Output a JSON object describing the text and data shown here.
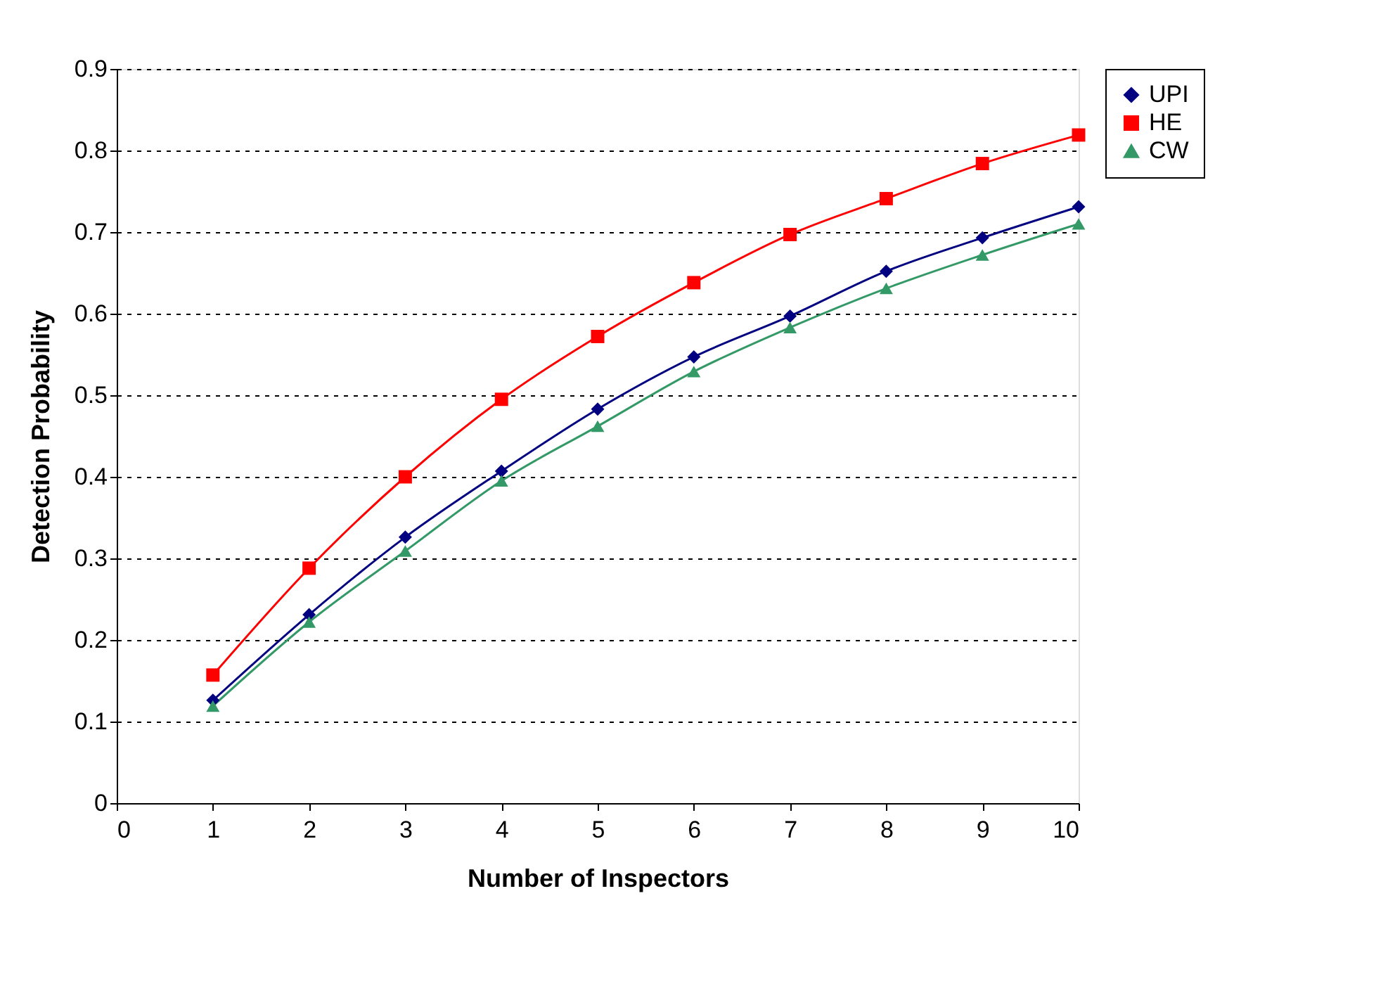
{
  "chart_data": {
    "type": "line",
    "xlabel": "Number of Inspectors",
    "ylabel": "Detection Probability",
    "x": [
      1,
      2,
      3,
      4,
      5,
      6,
      7,
      8,
      9,
      10
    ],
    "series": [
      {
        "name": "UPI",
        "color": "#000080",
        "marker": "diamond",
        "values": [
          0.126,
          0.231,
          0.326,
          0.407,
          0.483,
          0.547,
          0.597,
          0.652,
          0.693,
          0.731
        ]
      },
      {
        "name": "HE",
        "color": "#ff0000",
        "marker": "square",
        "values": [
          0.157,
          0.288,
          0.4,
          0.495,
          0.572,
          0.638,
          0.697,
          0.741,
          0.784,
          0.819
        ]
      },
      {
        "name": "CW",
        "color": "#339966",
        "marker": "triangle",
        "values": [
          0.119,
          0.222,
          0.309,
          0.395,
          0.462,
          0.529,
          0.583,
          0.631,
          0.672,
          0.71
        ]
      }
    ],
    "xlim": [
      0,
      10
    ],
    "xticks": [
      0,
      1,
      2,
      3,
      4,
      5,
      6,
      7,
      8,
      9,
      10
    ],
    "ylim": [
      0,
      0.9
    ],
    "yticks": [
      0,
      0.1,
      0.2,
      0.3,
      0.4,
      0.5,
      0.6,
      0.7,
      0.8,
      0.9
    ],
    "grid": "y",
    "legend": "right",
    "line_style": "solid"
  }
}
